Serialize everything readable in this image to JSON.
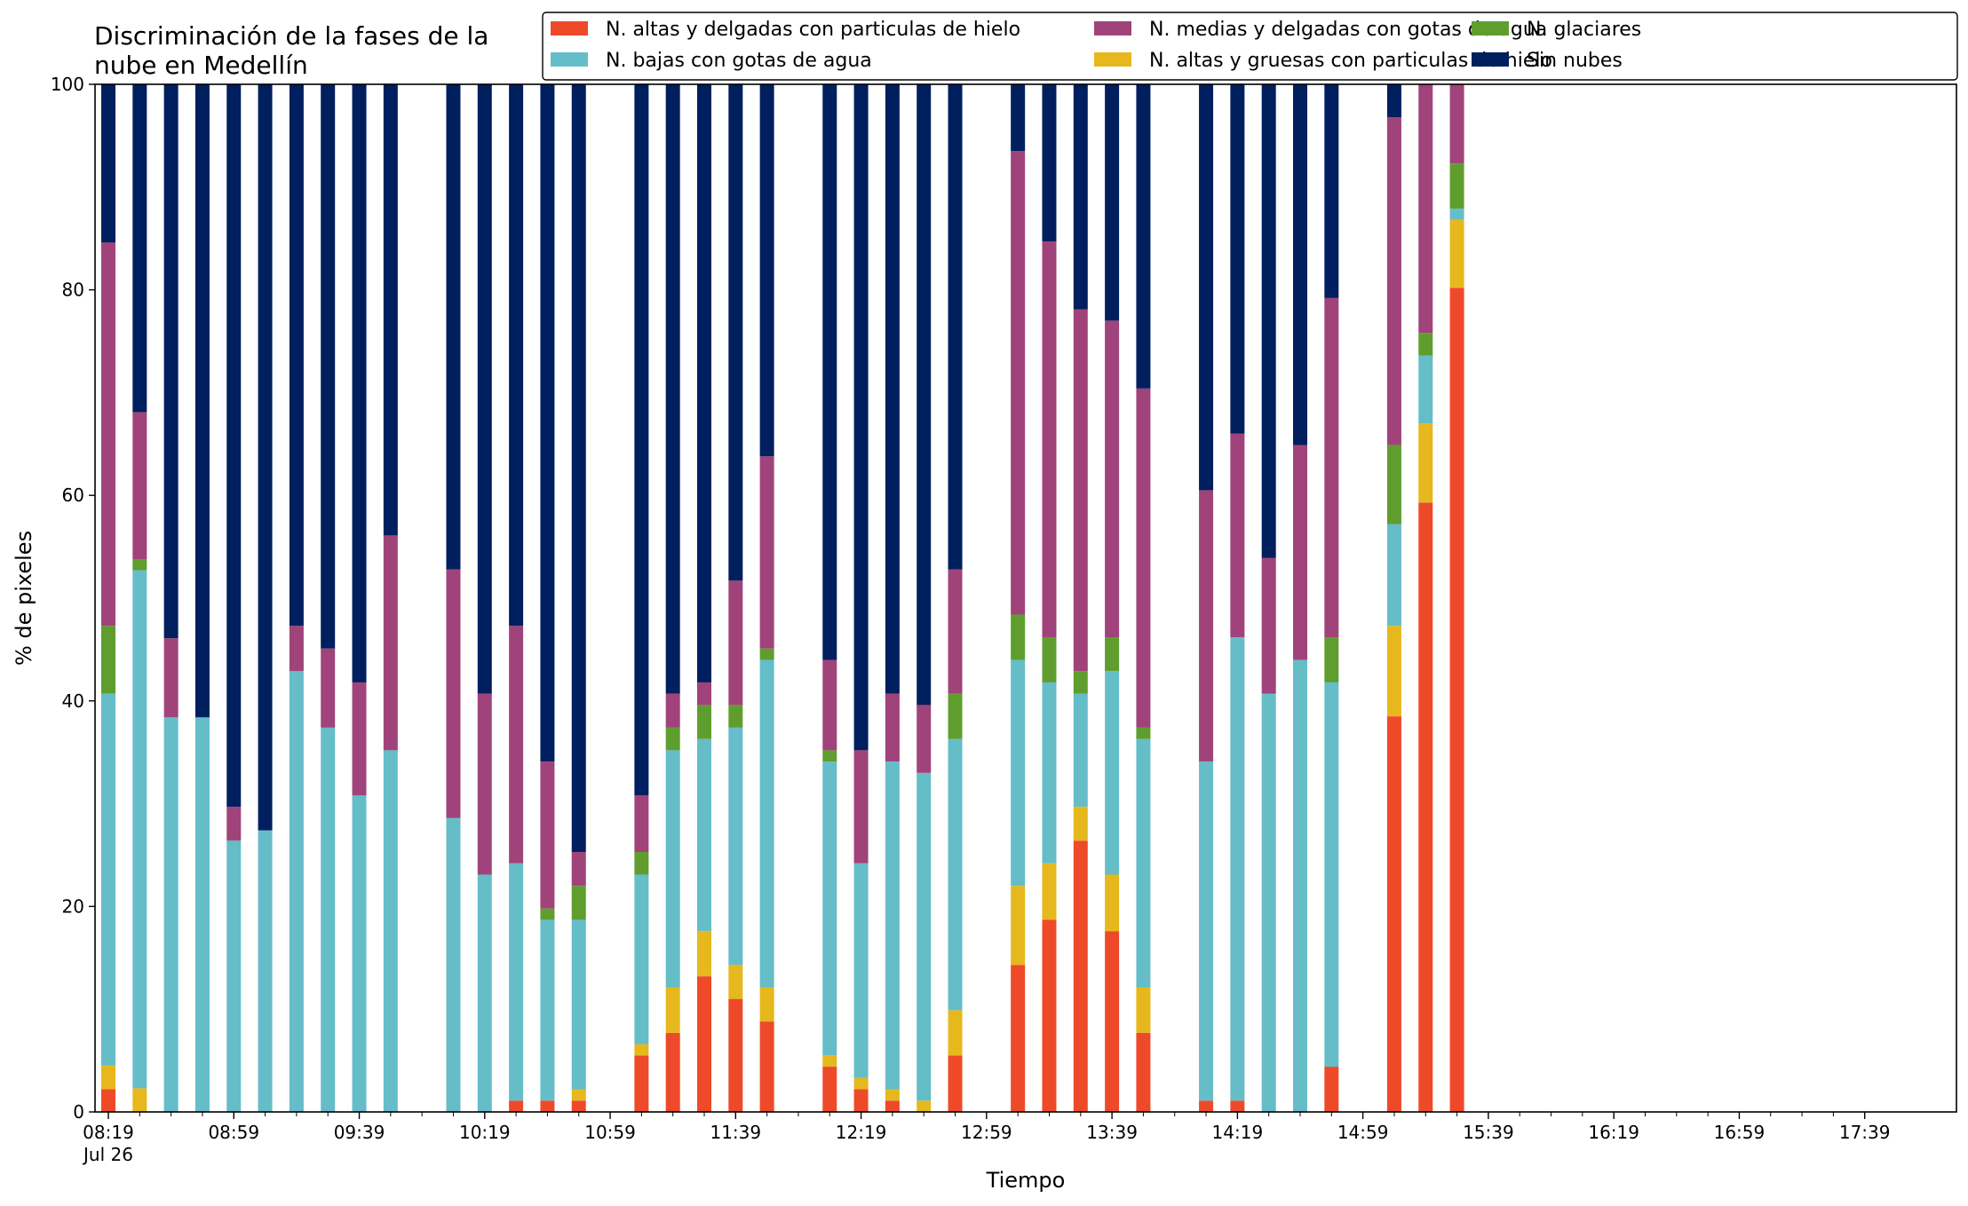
{
  "chart_data": {
    "type": "bar",
    "stacked": true,
    "title_lines": [
      "Discriminación de la fases de la",
      "nube en Medellín"
    ],
    "xlabel": "Tiempo",
    "ylabel": "% de pixeles",
    "ylim": [
      0,
      100
    ],
    "yticks": [
      "0",
      "20",
      "40",
      "60",
      "80",
      "100"
    ],
    "grid": false,
    "legend_position": "top-right",
    "time_range_minutes": [
      0,
      559
    ],
    "first_tick_date": "Jul 26",
    "xticks_major": [
      {
        "minute": 0,
        "label": "08:19"
      },
      {
        "minute": 40,
        "label": "08:59"
      },
      {
        "minute": 80,
        "label": "09:39"
      },
      {
        "minute": 120,
        "label": "10:19"
      },
      {
        "minute": 160,
        "label": "10:59"
      },
      {
        "minute": 200,
        "label": "11:39"
      },
      {
        "minute": 240,
        "label": "12:19"
      },
      {
        "minute": 280,
        "label": "12:59"
      },
      {
        "minute": 320,
        "label": "13:39"
      },
      {
        "minute": 360,
        "label": "14:19"
      },
      {
        "minute": 400,
        "label": "14:59"
      },
      {
        "minute": 440,
        "label": "15:39"
      },
      {
        "minute": 480,
        "label": "16:19"
      },
      {
        "minute": 520,
        "label": "16:59"
      },
      {
        "minute": 560,
        "label": "17:39"
      }
    ],
    "series": [
      {
        "name": "N. altas y delgadas con particulas de hielo",
        "color": "#ee4a2a"
      },
      {
        "name": "N. altas y gruesas con particulas de hielo",
        "color": "#e6b81d"
      },
      {
        "name": "N. bajas con gotas de agua",
        "color": "#65bdc8"
      },
      {
        "name": "N. glaciares",
        "color": "#5f9e2e"
      },
      {
        "name": "N. medias y delgadas con gotas de agua",
        "color": "#a0437a"
      },
      {
        "name": "Sin nubes",
        "color": "#001f5e"
      }
    ],
    "legend_order": [
      0,
      2,
      4,
      1,
      3,
      5
    ],
    "categories": [
      "08:19",
      "08:29",
      "08:39",
      "08:49",
      "08:59",
      "09:09",
      "09:19",
      "09:29",
      "09:39",
      "09:49",
      "10:09",
      "10:19",
      "10:29",
      "10:39",
      "10:49",
      "11:09",
      "11:19",
      "11:29",
      "11:39",
      "11:49",
      "12:09",
      "12:19",
      "12:29",
      "12:39",
      "12:49",
      "13:09",
      "13:19",
      "13:29",
      "13:39",
      "13:49",
      "14:09",
      "14:19",
      "14:29",
      "14:39",
      "14:49",
      "15:09",
      "15:19",
      "15:29"
    ],
    "bars": [
      {
        "t": 0,
        "v": [
          2.2,
          2.3,
          36.2,
          6.6,
          37.3,
          15.4
        ]
      },
      {
        "t": 10,
        "v": [
          0,
          2.3,
          50.4,
          1.1,
          14.3,
          31.9
        ]
      },
      {
        "t": 20,
        "v": [
          0,
          0,
          38.4,
          0,
          7.7,
          53.9
        ]
      },
      {
        "t": 30,
        "v": [
          0,
          0,
          38.4,
          0,
          0,
          61.6
        ]
      },
      {
        "t": 40,
        "v": [
          0,
          0,
          26.4,
          0,
          3.3,
          70.3
        ]
      },
      {
        "t": 50,
        "v": [
          0,
          0,
          27.4,
          0,
          0,
          72.6
        ]
      },
      {
        "t": 60,
        "v": [
          0,
          0,
          42.9,
          0,
          4.4,
          52.7
        ]
      },
      {
        "t": 70,
        "v": [
          0,
          0,
          37.4,
          0,
          7.7,
          54.9
        ]
      },
      {
        "t": 80,
        "v": [
          0,
          0,
          30.8,
          0,
          11.0,
          58.2
        ]
      },
      {
        "t": 90,
        "v": [
          0,
          0,
          35.2,
          0,
          20.9,
          43.9
        ]
      },
      {
        "t": 110,
        "v": [
          0,
          0,
          28.6,
          0,
          24.2,
          47.2
        ]
      },
      {
        "t": 120,
        "v": [
          0,
          0,
          23.1,
          0,
          17.6,
          59.3
        ]
      },
      {
        "t": 130,
        "v": [
          1.1,
          0,
          23.1,
          0,
          23.1,
          52.7
        ]
      },
      {
        "t": 140,
        "v": [
          1.1,
          0,
          17.6,
          1.1,
          14.3,
          65.9
        ]
      },
      {
        "t": 150,
        "v": [
          1.1,
          1.1,
          16.5,
          3.3,
          3.3,
          74.7
        ]
      },
      {
        "t": 170,
        "v": [
          5.5,
          1.1,
          16.5,
          2.2,
          5.5,
          69.2
        ]
      },
      {
        "t": 180,
        "v": [
          7.7,
          4.4,
          23.1,
          2.2,
          3.3,
          59.3
        ]
      },
      {
        "t": 190,
        "v": [
          13.2,
          4.4,
          18.7,
          3.3,
          2.2,
          58.2
        ]
      },
      {
        "t": 200,
        "v": [
          11.0,
          3.3,
          23.1,
          2.2,
          12.1,
          48.3
        ]
      },
      {
        "t": 210,
        "v": [
          8.8,
          3.3,
          31.9,
          1.1,
          18.7,
          36.2
        ]
      },
      {
        "t": 230,
        "v": [
          4.4,
          1.1,
          28.6,
          1.1,
          8.8,
          56.0
        ]
      },
      {
        "t": 240,
        "v": [
          2.2,
          1.1,
          20.9,
          0,
          11.0,
          64.8
        ]
      },
      {
        "t": 250,
        "v": [
          1.1,
          1.1,
          31.9,
          0,
          6.6,
          59.3
        ]
      },
      {
        "t": 260,
        "v": [
          0,
          1.1,
          31.9,
          0,
          6.6,
          60.4
        ]
      },
      {
        "t": 270,
        "v": [
          5.5,
          4.4,
          26.4,
          4.4,
          12.1,
          47.2
        ]
      },
      {
        "t": 290,
        "v": [
          14.3,
          7.7,
          22.0,
          4.4,
          45.1,
          6.5
        ]
      },
      {
        "t": 300,
        "v": [
          18.7,
          5.5,
          17.6,
          4.4,
          38.5,
          15.3
        ]
      },
      {
        "t": 310,
        "v": [
          26.4,
          3.3,
          11.0,
          2.2,
          35.2,
          21.9
        ]
      },
      {
        "t": 320,
        "v": [
          17.6,
          5.5,
          19.8,
          3.3,
          30.8,
          23.0
        ]
      },
      {
        "t": 330,
        "v": [
          7.7,
          4.4,
          24.2,
          1.1,
          33.0,
          29.6
        ]
      },
      {
        "t": 350,
        "v": [
          1.1,
          0,
          33.0,
          0,
          26.4,
          39.5
        ]
      },
      {
        "t": 360,
        "v": [
          1.1,
          0,
          45.1,
          0,
          19.8,
          34.0
        ]
      },
      {
        "t": 370,
        "v": [
          0,
          0,
          40.7,
          0,
          13.2,
          46.1
        ]
      },
      {
        "t": 380,
        "v": [
          0,
          0,
          44.0,
          0,
          20.9,
          35.1
        ]
      },
      {
        "t": 390,
        "v": [
          4.4,
          0,
          37.4,
          4.4,
          33.0,
          20.8
        ]
      },
      {
        "t": 410,
        "v": [
          38.5,
          8.8,
          9.9,
          7.7,
          31.9,
          3.2
        ]
      },
      {
        "t": 420,
        "v": [
          59.3,
          7.7,
          6.6,
          2.2,
          24.2,
          0
        ]
      },
      {
        "t": 430,
        "v": [
          80.2,
          6.6,
          1.1,
          4.4,
          7.7,
          0
        ]
      }
    ]
  }
}
